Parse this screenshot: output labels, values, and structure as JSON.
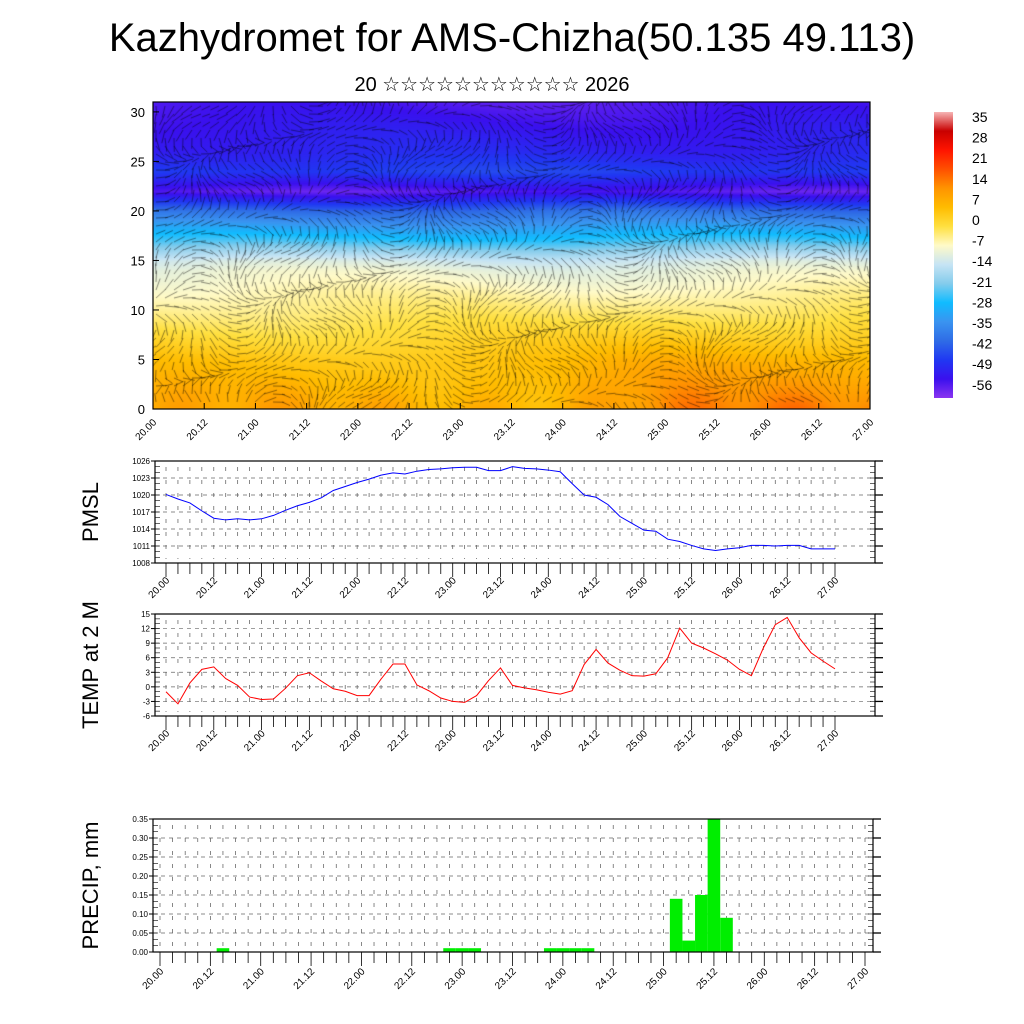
{
  "title": "Kazhydromet for AMS-Chizha(50.135 49.113)",
  "subtitle": "20 ☆☆☆☆☆☆☆☆☆☆☆ 2026",
  "colors": {
    "pmsl": "#0000ff",
    "temp": "#ff0000",
    "precip": "#00ee00"
  },
  "chart_data": [
    {
      "type": "heatmap",
      "name": "cross-section",
      "ylim": [
        0,
        31
      ],
      "yticks": [
        "0",
        "5",
        "10",
        "15",
        "20",
        "25",
        "30"
      ],
      "xticks": [
        "20.00",
        "20.12",
        "21.00",
        "21.12",
        "22.00",
        "22.12",
        "23.00",
        "23.12",
        "24.00",
        "24.12",
        "25.00",
        "25.12",
        "26.00",
        "26.12",
        "27.00"
      ],
      "colorbar": {
        "levels": [
          "35",
          "28",
          "21",
          "14",
          "7",
          "0",
          "-7",
          "-14",
          "-21",
          "-28",
          "-35",
          "-42",
          "-49",
          "-56"
        ],
        "colors": [
          "#f6b4b4",
          "#c80000",
          "#ff1400",
          "#ff5000",
          "#ff9400",
          "#ffbc00",
          "#ffe040",
          "#fffac8",
          "#c6e4f4",
          "#84ccec",
          "#10bcff",
          "#3a94f0",
          "#2f6ce6",
          "#2038f2",
          "#3a10ee",
          "#8a34f0"
        ]
      }
    },
    {
      "type": "line",
      "name": "pmsl",
      "ylabel": "PMSL",
      "ylim": [
        1008,
        1026
      ],
      "yticks": [
        "1008",
        "1011",
        "1014",
        "1017",
        "1020",
        "1023",
        "1026"
      ],
      "xticks": [
        "20.00",
        "20.12",
        "21.00",
        "21.12",
        "22.00",
        "22.12",
        "23.00",
        "23.12",
        "24.00",
        "24.12",
        "25.00",
        "25.12",
        "26.00",
        "26.12",
        "27.00"
      ],
      "values": [
        1020.1,
        1019.3,
        1018.6,
        1017.2,
        1015.9,
        1015.6,
        1015.8,
        1015.6,
        1015.8,
        1016.4,
        1017.3,
        1018.1,
        1018.7,
        1019.5,
        1020.8,
        1021.5,
        1022.2,
        1022.8,
        1023.5,
        1023.9,
        1023.7,
        1024.2,
        1024.5,
        1024.6,
        1024.8,
        1024.9,
        1024.9,
        1024.3,
        1024.3,
        1025.0,
        1024.7,
        1024.6,
        1024.4,
        1024.1,
        1022.0,
        1020.0,
        1019.6,
        1018.3,
        1016.2,
        1015.0,
        1013.8,
        1013.6,
        1012.2,
        1011.8,
        1011.1,
        1010.5,
        1010.2,
        1010.5,
        1010.7,
        1011.1,
        1011.1,
        1011.0,
        1011.1,
        1011.1,
        1010.5,
        1010.5,
        1010.5
      ]
    },
    {
      "type": "line",
      "name": "temp",
      "ylabel": "TEMP at 2 M",
      "ylim": [
        -6,
        15
      ],
      "yticks": [
        "-6",
        "-3",
        "0",
        "3",
        "6",
        "9",
        "12",
        "15"
      ],
      "xticks": [
        "20.00",
        "20.12",
        "21.00",
        "21.12",
        "22.00",
        "22.12",
        "23.00",
        "23.12",
        "24.00",
        "24.12",
        "25.00",
        "25.12",
        "26.00",
        "26.12",
        "27.00"
      ],
      "values": [
        -1,
        -3.5,
        0.8,
        3.6,
        4.1,
        1.7,
        0.3,
        -2.1,
        -2.6,
        -2.5,
        -0.3,
        2.3,
        2.9,
        1.2,
        -0.4,
        -0.9,
        -1.8,
        -1.8,
        1.6,
        4.7,
        4.7,
        0.4,
        -0.8,
        -2.3,
        -3.0,
        -3.2,
        -1.8,
        1.3,
        3.9,
        0.3,
        -0.2,
        -0.6,
        -1.1,
        -1.5,
        -0.8,
        4.6,
        7.7,
        4.9,
        3.4,
        2.3,
        2.2,
        2.7,
        6.0,
        12.1,
        9.0,
        8.0,
        6.8,
        5.5,
        3.6,
        2.3,
        8.0,
        12.8,
        14.3,
        10.1,
        7.0,
        5.3,
        3.7
      ]
    },
    {
      "type": "bar",
      "name": "precip",
      "ylabel": "PRECIP, mm",
      "ylim": [
        0,
        0.35
      ],
      "yticks": [
        "0.00",
        "0.05",
        "0.10",
        "0.15",
        "0.20",
        "0.25",
        "0.30",
        "0.35"
      ],
      "xticks": [
        "20.00",
        "20.12",
        "21.00",
        "21.12",
        "22.00",
        "22.12",
        "23.00",
        "23.12",
        "24.00",
        "24.12",
        "25.00",
        "25.12",
        "26.00",
        "26.12",
        "27.00"
      ],
      "values": [
        0,
        0,
        0,
        0,
        0,
        0.01,
        0,
        0,
        0,
        0,
        0,
        0,
        0,
        0,
        0,
        0,
        0,
        0,
        0,
        0,
        0,
        0,
        0,
        0.01,
        0.01,
        0.01,
        0,
        0,
        0,
        0,
        0,
        0.01,
        0.01,
        0.01,
        0.01,
        0,
        0,
        0,
        0,
        0,
        0,
        0.14,
        0.03,
        0.15,
        0.35,
        0.09,
        0,
        0,
        0,
        0,
        0,
        0,
        0,
        0,
        0,
        0,
        0
      ]
    }
  ]
}
